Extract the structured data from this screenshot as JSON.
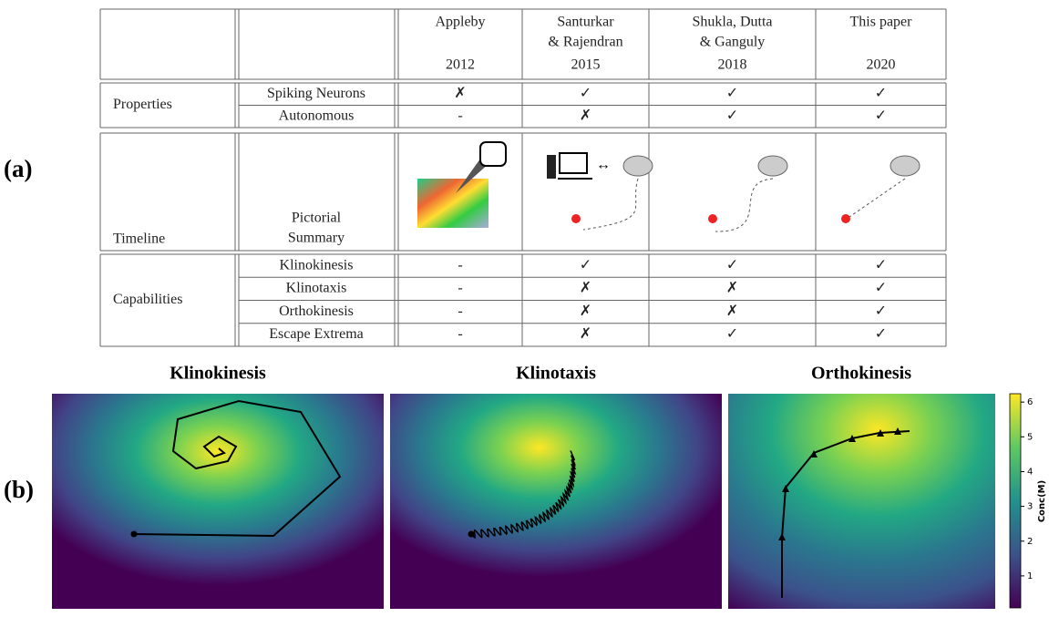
{
  "label_a": "(a)",
  "label_b": "(b)",
  "table": {
    "header": [
      {
        "lines": [
          "Appleby"
        ],
        "year": "2012"
      },
      {
        "lines": [
          "Santurkar",
          "& Rajendran"
        ],
        "year": "2015"
      },
      {
        "lines": [
          "Shukla, Dutta",
          "& Ganguly"
        ],
        "year": "2018"
      },
      {
        "lines": [
          "This paper"
        ],
        "year": "2020"
      }
    ],
    "groups": [
      {
        "name": "Properties",
        "rows": [
          {
            "label": "Spiking Neurons",
            "cells": [
              "✗",
              "✓",
              "✓",
              "✓"
            ]
          },
          {
            "label": "Autonomous",
            "cells": [
              "-",
              "✗",
              "✓",
              "✓"
            ]
          }
        ]
      },
      {
        "name": "Timeline",
        "rows": [
          {
            "label_lines": [
              "Pictorial",
              "Summary"
            ]
          }
        ]
      },
      {
        "name": "Capabilities",
        "rows": [
          {
            "label": "Klinokinesis",
            "cells": [
              "-",
              "✓",
              "✓",
              "✓"
            ]
          },
          {
            "label": "Klinotaxis",
            "cells": [
              "-",
              "✗",
              "✗",
              "✓"
            ]
          },
          {
            "label": "Orthokinesis",
            "cells": [
              "-",
              "✗",
              "✗",
              "✓"
            ]
          },
          {
            "label": "Escape Extrema",
            "cells": [
              "-",
              "✗",
              "✓",
              "✓"
            ]
          }
        ]
      }
    ]
  },
  "panels": [
    {
      "title": "Klinokinesis"
    },
    {
      "title": "Klinotaxis"
    },
    {
      "title": "Orthokinesis"
    }
  ],
  "colorbar": {
    "label": "Conc(M)",
    "ylim": [
      0.08,
      6.24
    ],
    "yticks": [
      1,
      2,
      3,
      4,
      5,
      6
    ]
  }
}
